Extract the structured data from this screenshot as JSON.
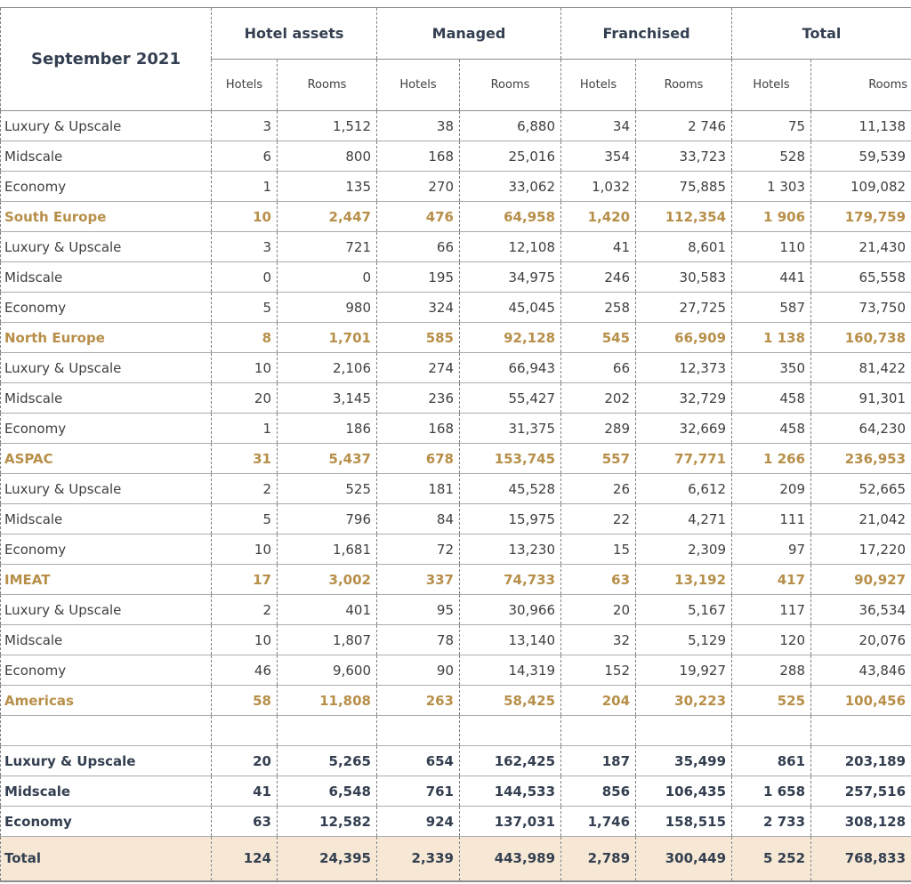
{
  "colors": {
    "navy": "#333f50",
    "gold": "#b78f49",
    "total_bg": "#f6e8d5",
    "grid_solid": "#ababab",
    "grid_dashed": "#7f7f7f",
    "text": "#3f3f3f"
  },
  "chart_data": {
    "type": "table",
    "title": "September 2021",
    "column_groups": [
      "Hotel assets",
      "Managed",
      "Franchised",
      "Total"
    ],
    "sub_columns": [
      "Hotels",
      "Rooms"
    ],
    "rows": [
      {
        "label": "Luxury & Upscale",
        "type": "normal",
        "values": [
          "3",
          "1,512",
          "38",
          "6,880",
          "34",
          "2 746",
          "75",
          "11,138"
        ]
      },
      {
        "label": "Midscale",
        "type": "normal",
        "values": [
          "6",
          "800",
          "168",
          "25,016",
          "354",
          "33,723",
          "528",
          "59,539"
        ]
      },
      {
        "label": "Economy",
        "type": "normal",
        "values": [
          "1",
          "135",
          "270",
          "33,062",
          "1,032",
          "75,885",
          "1 303",
          "109,082"
        ]
      },
      {
        "label": "South Europe",
        "type": "region",
        "values": [
          "10",
          "2,447",
          "476",
          "64,958",
          "1,420",
          "112,354",
          "1 906",
          "179,759"
        ]
      },
      {
        "label": "Luxury & Upscale",
        "type": "normal",
        "values": [
          "3",
          "721",
          "66",
          "12,108",
          "41",
          "8,601",
          "110",
          "21,430"
        ]
      },
      {
        "label": "Midscale",
        "type": "normal",
        "values": [
          "0",
          "0",
          "195",
          "34,975",
          "246",
          "30,583",
          "441",
          "65,558"
        ]
      },
      {
        "label": "Economy",
        "type": "normal",
        "values": [
          "5",
          "980",
          "324",
          "45,045",
          "258",
          "27,725",
          "587",
          "73,750"
        ]
      },
      {
        "label": "North Europe",
        "type": "region",
        "values": [
          "8",
          "1,701",
          "585",
          "92,128",
          "545",
          "66,909",
          "1 138",
          "160,738"
        ]
      },
      {
        "label": "Luxury & Upscale",
        "type": "normal",
        "values": [
          "10",
          "2,106",
          "274",
          "66,943",
          "66",
          "12,373",
          "350",
          "81,422"
        ]
      },
      {
        "label": "Midscale",
        "type": "normal",
        "values": [
          "20",
          "3,145",
          "236",
          "55,427",
          "202",
          "32,729",
          "458",
          "91,301"
        ]
      },
      {
        "label": "Economy",
        "type": "normal",
        "values": [
          "1",
          "186",
          "168",
          "31,375",
          "289",
          "32,669",
          "458",
          "64,230"
        ]
      },
      {
        "label": "ASPAC",
        "type": "region",
        "values": [
          "31",
          "5,437",
          "678",
          "153,745",
          "557",
          "77,771",
          "1 266",
          "236,953"
        ]
      },
      {
        "label": "Luxury & Upscale",
        "type": "normal",
        "values": [
          "2",
          "525",
          "181",
          "45,528",
          "26",
          "6,612",
          "209",
          "52,665"
        ]
      },
      {
        "label": "Midscale",
        "type": "normal",
        "values": [
          "5",
          "796",
          "84",
          "15,975",
          "22",
          "4,271",
          "111",
          "21,042"
        ]
      },
      {
        "label": "Economy",
        "type": "normal",
        "values": [
          "10",
          "1,681",
          "72",
          "13,230",
          "15",
          "2,309",
          "97",
          "17,220"
        ]
      },
      {
        "label": "IMEAT",
        "type": "region",
        "values": [
          "17",
          "3,002",
          "337",
          "74,733",
          "63",
          "13,192",
          "417",
          "90,927"
        ]
      },
      {
        "label": "Luxury & Upscale",
        "type": "normal",
        "values": [
          "2",
          "401",
          "95",
          "30,966",
          "20",
          "5,167",
          "117",
          "36,534"
        ]
      },
      {
        "label": "Midscale",
        "type": "normal",
        "values": [
          "10",
          "1,807",
          "78",
          "13,140",
          "32",
          "5,129",
          "120",
          "20,076"
        ]
      },
      {
        "label": "Economy",
        "type": "normal",
        "values": [
          "46",
          "9,600",
          "90",
          "14,319",
          "152",
          "19,927",
          "288",
          "43,846"
        ]
      },
      {
        "label": "Americas",
        "type": "region",
        "values": [
          "58",
          "11,808",
          "263",
          "58,425",
          "204",
          "30,223",
          "525",
          "100,456"
        ]
      },
      {
        "label": "",
        "type": "spacer",
        "values": [
          "",
          "",
          "",
          "",
          "",
          "",
          "",
          ""
        ]
      },
      {
        "label": "Luxury & Upscale",
        "type": "summary",
        "values": [
          "20",
          "5,265",
          "654",
          "162,425",
          "187",
          "35,499",
          "861",
          "203,189"
        ]
      },
      {
        "label": "Midscale",
        "type": "summary",
        "values": [
          "41",
          "6,548",
          "761",
          "144,533",
          "856",
          "106,435",
          "1 658",
          "257,516"
        ]
      },
      {
        "label": "Economy",
        "type": "summary",
        "values": [
          "63",
          "12,582",
          "924",
          "137,031",
          "1,746",
          "158,515",
          "2 733",
          "308,128"
        ]
      },
      {
        "label": "Total",
        "type": "total",
        "values": [
          "124",
          "24,395",
          "2,339",
          "443,989",
          "2,789",
          "300,449",
          "5 252",
          "768,833"
        ]
      }
    ]
  }
}
